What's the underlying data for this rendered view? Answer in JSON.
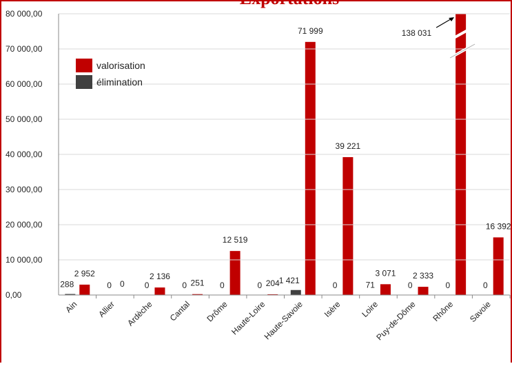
{
  "chart_data": {
    "type": "bar",
    "title": "Exportations",
    "categories": [
      "Ain",
      "Allier",
      "Ardèche",
      "Cantal",
      "Drôme",
      "Haute-Loire",
      "Haute-Savoie",
      "Isère",
      "Loire",
      "Puy-de-Dôme",
      "Rhône",
      "Savoie"
    ],
    "series": [
      {
        "name": "valorisation",
        "color": "#c00000",
        "values": [
          2952,
          0,
          2136,
          251,
          12519,
          204,
          71999,
          39221,
          3071,
          2333,
          138031,
          16392
        ],
        "value_labels": [
          "2 952",
          "0",
          "2 136",
          "251",
          "12 519",
          "204",
          "71 999",
          "39 221",
          "3 071",
          "2 333",
          "138 031",
          "16 392"
        ]
      },
      {
        "name": "élimination",
        "color": "#404040",
        "values": [
          288,
          0,
          0,
          0,
          0,
          0,
          1421,
          0,
          71,
          0,
          0,
          0
        ],
        "value_labels": [
          "288",
          "0",
          "0",
          "0",
          "0",
          "0",
          "1 421",
          "0",
          "71",
          "0",
          "0",
          "0"
        ]
      }
    ],
    "ylim": [
      0,
      80000
    ],
    "yticks": [
      {
        "value": 0,
        "label": "0,00"
      },
      {
        "value": 10000,
        "label": "10 000,00"
      },
      {
        "value": 20000,
        "label": "20 000,00"
      },
      {
        "value": 30000,
        "label": "30 000,00"
      },
      {
        "value": 40000,
        "label": "40 000,00"
      },
      {
        "value": 50000,
        "label": "50 000,00"
      },
      {
        "value": 60000,
        "label": "60 000,00"
      },
      {
        "value": 70000,
        "label": "70 000,00"
      },
      {
        "value": 80000,
        "label": "80 000,00"
      }
    ],
    "grid": true
  }
}
